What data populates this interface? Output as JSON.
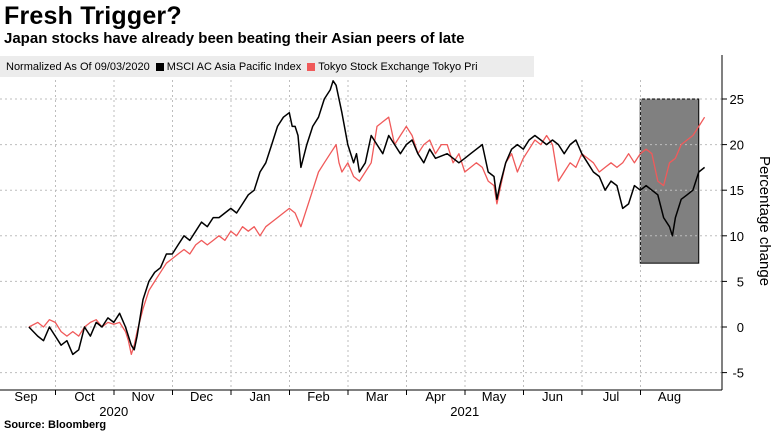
{
  "title": "Fresh Trigger?",
  "subtitle": "Japan stocks have already been beating their Asian peers of late",
  "legend": {
    "normalized_label": "Normalized As Of 09/03/2020",
    "items": [
      {
        "label": "MSCI AC Asia Pacific Index",
        "color": "#000000"
      },
      {
        "label": "Tokyo Stock Exchange Tokyo Pri",
        "color": "#f05a5a"
      }
    ]
  },
  "source": "Source: Bloomberg",
  "chart_data": {
    "type": "line",
    "title": "Fresh Trigger?",
    "subtitle": "Japan stocks have already been beating their Asian peers of late",
    "xlabel": "",
    "ylabel": "Percentage change",
    "ylim": [
      -6,
      30
    ],
    "yticks": [
      -5,
      0,
      5,
      10,
      15,
      20,
      25
    ],
    "x_unit": "months since 2020-09-01",
    "xlim": [
      0,
      11.9
    ],
    "months": [
      "Sep",
      "Oct",
      "Nov",
      "Dec",
      "Jan",
      "Feb",
      "Mar",
      "Apr",
      "May",
      "Jun",
      "Jul",
      "Aug"
    ],
    "years": [
      {
        "label": "2020",
        "at": 1.5
      },
      {
        "label": "2021",
        "at": 7.5
      }
    ],
    "highlight": {
      "x0": 10.5,
      "x1": 11.5,
      "y0": 7,
      "y1": 25,
      "color": "#808080"
    },
    "series": [
      {
        "name": "MSCI AC Asia Pacific Index",
        "color": "#000000",
        "points": [
          [
            0.05,
            0
          ],
          [
            0.2,
            -1
          ],
          [
            0.3,
            -1.5
          ],
          [
            0.4,
            0
          ],
          [
            0.5,
            -1
          ],
          [
            0.6,
            -2
          ],
          [
            0.7,
            -1.5
          ],
          [
            0.8,
            -3
          ],
          [
            0.9,
            -2.5
          ],
          [
            1.0,
            0
          ],
          [
            1.1,
            -1
          ],
          [
            1.2,
            0.5
          ],
          [
            1.3,
            0
          ],
          [
            1.4,
            1
          ],
          [
            1.5,
            0.5
          ],
          [
            1.6,
            1.5
          ],
          [
            1.7,
            0
          ],
          [
            1.75,
            -1
          ],
          [
            1.8,
            -2
          ],
          [
            1.85,
            -2.5
          ],
          [
            1.9,
            -1
          ],
          [
            2.0,
            3
          ],
          [
            2.1,
            5
          ],
          [
            2.2,
            6
          ],
          [
            2.3,
            6.5
          ],
          [
            2.4,
            8
          ],
          [
            2.5,
            8
          ],
          [
            2.6,
            9
          ],
          [
            2.7,
            10
          ],
          [
            2.8,
            9.5
          ],
          [
            2.9,
            10.5
          ],
          [
            3.0,
            11.5
          ],
          [
            3.1,
            11
          ],
          [
            3.2,
            12
          ],
          [
            3.3,
            12
          ],
          [
            3.4,
            12.5
          ],
          [
            3.5,
            13
          ],
          [
            3.6,
            12.5
          ],
          [
            3.7,
            13.5
          ],
          [
            3.8,
            14.5
          ],
          [
            3.9,
            15
          ],
          [
            4.0,
            17
          ],
          [
            4.1,
            18
          ],
          [
            4.2,
            20
          ],
          [
            4.3,
            22
          ],
          [
            4.4,
            23
          ],
          [
            4.5,
            23.5
          ],
          [
            4.55,
            22
          ],
          [
            4.6,
            22
          ],
          [
            4.65,
            21
          ],
          [
            4.7,
            17.5
          ],
          [
            4.8,
            20
          ],
          [
            4.9,
            22
          ],
          [
            5.0,
            23
          ],
          [
            5.1,
            25
          ],
          [
            5.2,
            26
          ],
          [
            5.25,
            27
          ],
          [
            5.3,
            26.5
          ],
          [
            5.35,
            25
          ],
          [
            5.4,
            23.5
          ],
          [
            5.5,
            20
          ],
          [
            5.6,
            18
          ],
          [
            5.65,
            19
          ],
          [
            5.7,
            17
          ],
          [
            5.8,
            18
          ],
          [
            5.9,
            21
          ],
          [
            6.0,
            20
          ],
          [
            6.1,
            19
          ],
          [
            6.2,
            21
          ],
          [
            6.3,
            20
          ],
          [
            6.4,
            19
          ],
          [
            6.5,
            20
          ],
          [
            6.6,
            20.5
          ],
          [
            6.7,
            19
          ],
          [
            6.8,
            18
          ],
          [
            6.9,
            19.5
          ],
          [
            7.0,
            18.5
          ],
          [
            7.2,
            19
          ],
          [
            7.4,
            18
          ],
          [
            7.5,
            18.5
          ],
          [
            7.6,
            19
          ],
          [
            7.7,
            19.5
          ],
          [
            7.8,
            20
          ],
          [
            7.9,
            17
          ],
          [
            8.0,
            16.5
          ],
          [
            8.05,
            14
          ],
          [
            8.1,
            15.5
          ],
          [
            8.2,
            18
          ],
          [
            8.3,
            19.5
          ],
          [
            8.4,
            20
          ],
          [
            8.5,
            19.5
          ],
          [
            8.6,
            20.5
          ],
          [
            8.7,
            21
          ],
          [
            8.8,
            20.5
          ],
          [
            8.9,
            20
          ],
          [
            9.0,
            20.5
          ],
          [
            9.1,
            20
          ],
          [
            9.2,
            19
          ],
          [
            9.3,
            20
          ],
          [
            9.4,
            20.5
          ],
          [
            9.5,
            19
          ],
          [
            9.6,
            18
          ],
          [
            9.7,
            17
          ],
          [
            9.8,
            16.5
          ],
          [
            9.9,
            15
          ],
          [
            10.0,
            16
          ],
          [
            10.1,
            15.5
          ],
          [
            10.2,
            13
          ],
          [
            10.3,
            13.5
          ],
          [
            10.4,
            15.5
          ],
          [
            10.5,
            15
          ],
          [
            10.6,
            15.5
          ],
          [
            10.7,
            15
          ],
          [
            10.8,
            14.5
          ],
          [
            10.9,
            12
          ],
          [
            11.0,
            11
          ],
          [
            11.05,
            10
          ],
          [
            11.1,
            12
          ],
          [
            11.2,
            14
          ],
          [
            11.3,
            14.5
          ],
          [
            11.4,
            15
          ],
          [
            11.5,
            17
          ],
          [
            11.6,
            17.5
          ]
        ]
      },
      {
        "name": "Tokyo Stock Exchange Tokyo Pri",
        "color": "#f05a5a",
        "points": [
          [
            0.05,
            0
          ],
          [
            0.2,
            0.5
          ],
          [
            0.3,
            0
          ],
          [
            0.4,
            0.8
          ],
          [
            0.5,
            0.5
          ],
          [
            0.6,
            -0.5
          ],
          [
            0.7,
            -1
          ],
          [
            0.8,
            -0.5
          ],
          [
            0.9,
            -1
          ],
          [
            1.0,
            0
          ],
          [
            1.1,
            0.5
          ],
          [
            1.2,
            0.8
          ],
          [
            1.3,
            0
          ],
          [
            1.4,
            0.5
          ],
          [
            1.5,
            0.3
          ],
          [
            1.6,
            0.5
          ],
          [
            1.7,
            -0.5
          ],
          [
            1.75,
            -1.5
          ],
          [
            1.8,
            -3
          ],
          [
            1.85,
            -2
          ],
          [
            1.9,
            -0.5
          ],
          [
            2.0,
            2
          ],
          [
            2.1,
            4
          ],
          [
            2.2,
            5
          ],
          [
            2.3,
            6
          ],
          [
            2.4,
            7
          ],
          [
            2.5,
            7.5
          ],
          [
            2.6,
            8
          ],
          [
            2.7,
            8.5
          ],
          [
            2.8,
            8
          ],
          [
            2.9,
            9
          ],
          [
            3.0,
            9.5
          ],
          [
            3.1,
            9
          ],
          [
            3.2,
            9.5
          ],
          [
            3.3,
            10
          ],
          [
            3.4,
            9.5
          ],
          [
            3.5,
            10.5
          ],
          [
            3.6,
            10
          ],
          [
            3.7,
            11
          ],
          [
            3.8,
            10.5
          ],
          [
            3.9,
            11
          ],
          [
            4.0,
            10
          ],
          [
            4.1,
            11
          ],
          [
            4.2,
            11.5
          ],
          [
            4.3,
            12
          ],
          [
            4.4,
            12.5
          ],
          [
            4.5,
            13
          ],
          [
            4.6,
            12.5
          ],
          [
            4.7,
            11
          ],
          [
            4.8,
            13
          ],
          [
            4.9,
            15
          ],
          [
            5.0,
            17
          ],
          [
            5.1,
            18
          ],
          [
            5.2,
            19
          ],
          [
            5.3,
            20
          ],
          [
            5.35,
            18
          ],
          [
            5.4,
            17
          ],
          [
            5.5,
            18
          ],
          [
            5.6,
            16.5
          ],
          [
            5.7,
            16
          ],
          [
            5.8,
            17
          ],
          [
            5.9,
            18
          ],
          [
            6.0,
            22
          ],
          [
            6.1,
            22.5
          ],
          [
            6.2,
            23
          ],
          [
            6.3,
            20
          ],
          [
            6.4,
            21
          ],
          [
            6.5,
            22
          ],
          [
            6.6,
            21
          ],
          [
            6.7,
            19
          ],
          [
            6.8,
            20
          ],
          [
            6.9,
            20.5
          ],
          [
            7.0,
            19
          ],
          [
            7.1,
            20
          ],
          [
            7.2,
            20
          ],
          [
            7.3,
            18
          ],
          [
            7.4,
            19
          ],
          [
            7.5,
            17
          ],
          [
            7.6,
            17.5
          ],
          [
            7.7,
            18
          ],
          [
            7.8,
            17.5
          ],
          [
            7.9,
            16
          ],
          [
            8.0,
            15.5
          ],
          [
            8.05,
            13.5
          ],
          [
            8.1,
            15
          ],
          [
            8.2,
            18
          ],
          [
            8.3,
            19
          ],
          [
            8.4,
            17
          ],
          [
            8.5,
            18.5
          ],
          [
            8.6,
            19.5
          ],
          [
            8.7,
            20.5
          ],
          [
            8.8,
            20
          ],
          [
            8.9,
            21
          ],
          [
            9.0,
            20
          ],
          [
            9.1,
            16
          ],
          [
            9.2,
            17
          ],
          [
            9.3,
            18
          ],
          [
            9.4,
            17.5
          ],
          [
            9.5,
            19
          ],
          [
            9.6,
            18.5
          ],
          [
            9.7,
            18
          ],
          [
            9.8,
            17
          ],
          [
            9.9,
            17.5
          ],
          [
            10.0,
            18
          ],
          [
            10.1,
            17.5
          ],
          [
            10.2,
            18
          ],
          [
            10.3,
            19
          ],
          [
            10.4,
            18
          ],
          [
            10.5,
            19
          ],
          [
            10.6,
            19.5
          ],
          [
            10.7,
            19
          ],
          [
            10.8,
            16
          ],
          [
            10.9,
            15.5
          ],
          [
            11.0,
            18
          ],
          [
            11.1,
            18.5
          ],
          [
            11.2,
            20
          ],
          [
            11.3,
            20.5
          ],
          [
            11.4,
            21
          ],
          [
            11.5,
            22
          ],
          [
            11.6,
            23
          ]
        ]
      }
    ]
  }
}
